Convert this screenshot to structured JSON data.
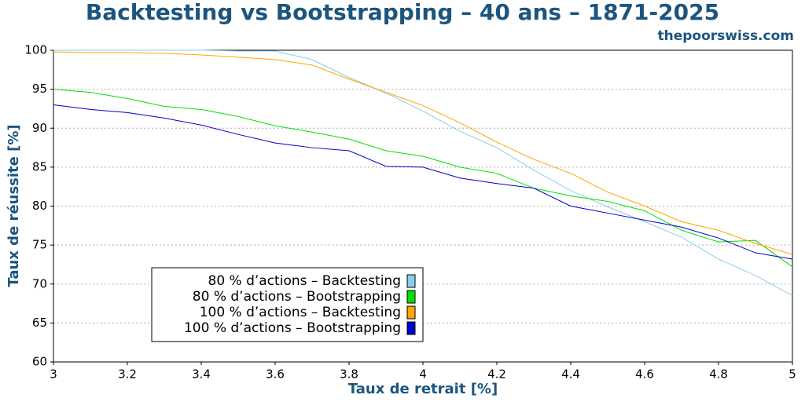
{
  "chart_data": {
    "type": "line",
    "title": "Backtesting vs Bootstrapping – 40 ans – 1871-2025",
    "subtitle": "thepoorswiss.com",
    "x_label": "Taux de retrait [%]",
    "y_label": "Taux de réussite [%]",
    "x": [
      3,
      3.1,
      3.2,
      3.3,
      3.4,
      3.5,
      3.6,
      3.7,
      3.8,
      3.9,
      4,
      4.1,
      4.2,
      4.3,
      4.4,
      4.5,
      4.6,
      4.7,
      4.8,
      4.9,
      5
    ],
    "series": [
      {
        "name": "80 % d’actions – Backtesting",
        "color": "#87ceeb",
        "values": [
          100,
          100,
          100,
          100,
          100,
          99.9,
          99.9,
          98.8,
          96.5,
          94.5,
          92.2,
          89.6,
          87.5,
          84.6,
          82,
          79.9,
          78,
          76,
          73.2,
          71.1,
          68.5
        ]
      },
      {
        "name": "80 % d’actions – Bootstrapping",
        "color": "#00e000",
        "values": [
          95,
          94.6,
          93.8,
          92.8,
          92.4,
          91.5,
          90.3,
          89.5,
          88.6,
          87.1,
          86.4,
          85,
          84.2,
          82.3,
          81.3,
          80.6,
          79.4,
          76.9,
          75.4,
          75.6,
          72.2
        ]
      },
      {
        "name": "100 % d’actions – Backtesting",
        "color": "#ffa500",
        "values": [
          99.8,
          99.7,
          99.7,
          99.6,
          99.4,
          99.1,
          98.8,
          98.1,
          96.3,
          94.6,
          92.9,
          90.7,
          88.2,
          86,
          84.2,
          81.8,
          80,
          78,
          76.9,
          75.2,
          73.8
        ]
      },
      {
        "name": "100 % d’actions – Bootstrapping",
        "color": "#0000cd",
        "values": [
          93,
          92.4,
          92,
          91.3,
          90.4,
          89.2,
          88.1,
          87.5,
          87.1,
          85.1,
          85,
          83.6,
          82.9,
          82.3,
          80,
          79.1,
          78.2,
          77.3,
          75.9,
          74,
          73.2
        ]
      }
    ],
    "xlim": [
      3,
      5
    ],
    "xticks": [
      3,
      3.2,
      3.4,
      3.6,
      3.8,
      4,
      4.2,
      4.4,
      4.6,
      4.8,
      5
    ],
    "ylim": [
      60,
      100
    ],
    "yticks": [
      60,
      65,
      70,
      75,
      80,
      85,
      90,
      95,
      100
    ],
    "grid": true,
    "legend": "lower left"
  }
}
